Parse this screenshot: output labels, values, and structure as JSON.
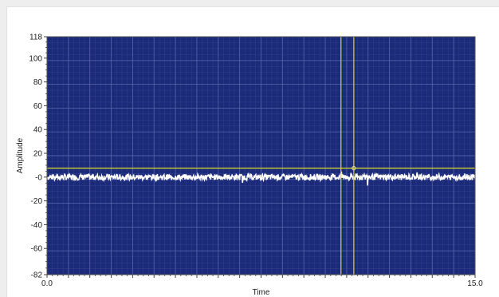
{
  "chart_data": {
    "type": "line",
    "title": "",
    "xlabel": "Time",
    "ylabel": "Amplitude",
    "xlim": [
      0.0,
      15.0
    ],
    "ylim": [
      -82,
      118
    ],
    "x_tick_labels": [
      "0.0",
      "15.0"
    ],
    "y_ticks": [
      118,
      100,
      80,
      60,
      40,
      20,
      0,
      -20,
      -40,
      -60,
      -82
    ],
    "y_tick_labels": [
      "118",
      "100",
      "80",
      "60",
      "40",
      "20",
      "-0",
      "-20",
      "-40",
      "-60",
      "-82"
    ],
    "grid": true,
    "plot_background": "#1c2a7a",
    "grid_color": "#5a68b0",
    "series": [
      {
        "color": "#ffffff",
        "baseline": 0,
        "noise_amplitude": 2.5,
        "x_range": [
          0.0,
          15.0
        ]
      }
    ],
    "cursors": [
      {
        "axis": "y",
        "value": 7.5,
        "color": "#d8d820"
      },
      {
        "axis": "x",
        "value": 10.3,
        "color": "#d8d820"
      },
      {
        "axis": "x",
        "value": 10.75,
        "color": "#d8d820"
      }
    ]
  }
}
